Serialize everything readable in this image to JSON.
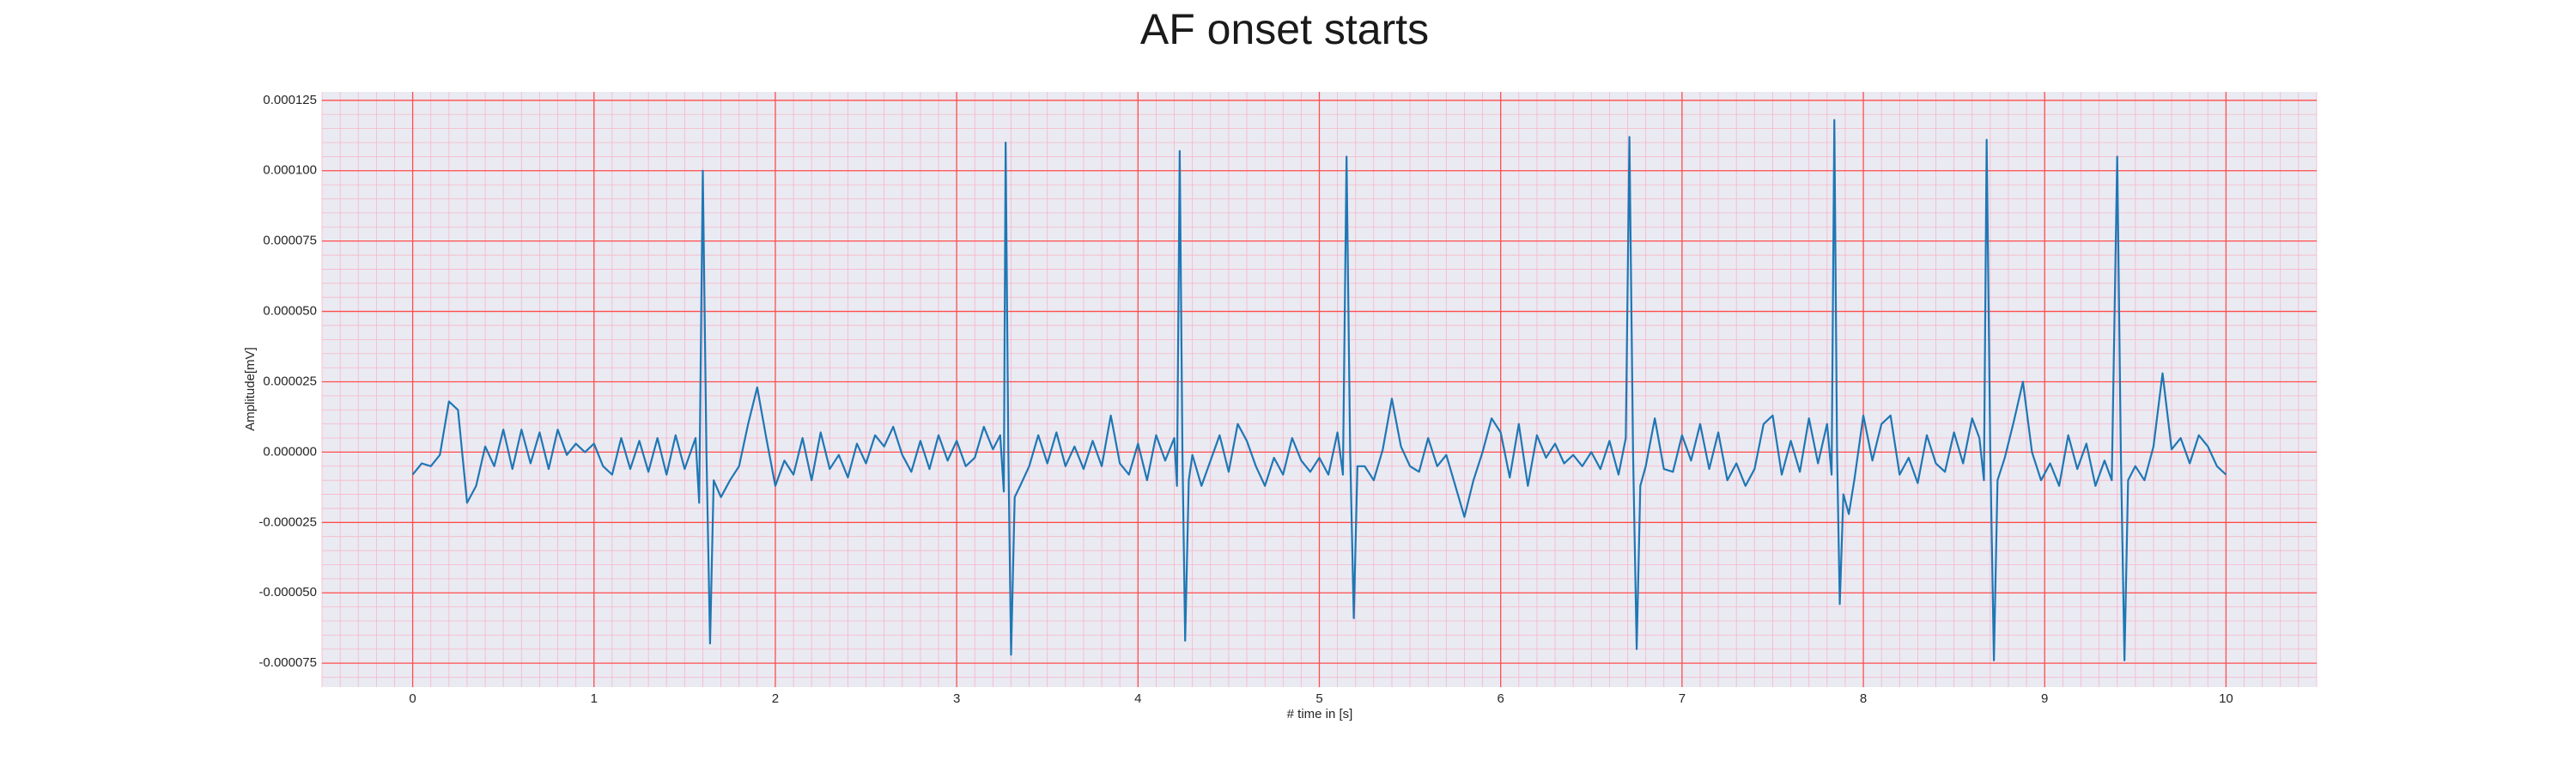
{
  "chart_data": {
    "type": "line",
    "title": "AF onset starts",
    "xlabel": "# time in [s]",
    "ylabel": "Amplitude[mV]",
    "xlim": [
      -0.5,
      10.5
    ],
    "ylim": [
      -8.35e-05,
      0.000128
    ],
    "xticks": [
      0,
      1,
      2,
      3,
      4,
      5,
      6,
      7,
      8,
      9,
      10
    ],
    "yticks": [
      {
        "value": -7.5e-05,
        "label": "-0.000075"
      },
      {
        "value": -5e-05,
        "label": "-0.000050"
      },
      {
        "value": -2.5e-05,
        "label": "-0.000025"
      },
      {
        "value": 0,
        "label": "0.000000"
      },
      {
        "value": 2.5e-05,
        "label": "0.000025"
      },
      {
        "value": 5e-05,
        "label": "0.000050"
      },
      {
        "value": 7.5e-05,
        "label": "0.000075"
      },
      {
        "value": 0.0001,
        "label": "0.000100"
      },
      {
        "value": 0.000125,
        "label": "0.000125"
      }
    ],
    "grid": true,
    "minor_grid": true,
    "background": "#eaeaf2",
    "grid_color": "#ff4d4d",
    "minor_grid_color": "#f7b6c8",
    "series": [
      {
        "color": "#1f77b4",
        "x": [
          0,
          0.05,
          0.1,
          0.15,
          0.2,
          0.25,
          0.3,
          0.35,
          0.4,
          0.45,
          0.5,
          0.55,
          0.6,
          0.65,
          0.7,
          0.75,
          0.8,
          0.85,
          0.9,
          0.95,
          1.0,
          1.05,
          1.1,
          1.15,
          1.2,
          1.25,
          1.3,
          1.35,
          1.4,
          1.45,
          1.5,
          1.56,
          1.58,
          1.6,
          1.62,
          1.64,
          1.66,
          1.7,
          1.75,
          1.8,
          1.85,
          1.9,
          1.95,
          2.0,
          2.05,
          2.1,
          2.15,
          2.2,
          2.25,
          2.3,
          2.35,
          2.4,
          2.45,
          2.5,
          2.55,
          2.6,
          2.65,
          2.7,
          2.75,
          2.8,
          2.85,
          2.9,
          2.95,
          3.0,
          3.05,
          3.1,
          3.15,
          3.2,
          3.24,
          3.26,
          3.27,
          3.285,
          3.3,
          3.32,
          3.35,
          3.4,
          3.45,
          3.5,
          3.55,
          3.6,
          3.65,
          3.7,
          3.75,
          3.8,
          3.85,
          3.9,
          3.95,
          4.0,
          4.05,
          4.1,
          4.15,
          4.2,
          4.215,
          4.23,
          4.245,
          4.26,
          4.28,
          4.3,
          4.35,
          4.4,
          4.45,
          4.5,
          4.55,
          4.6,
          4.65,
          4.7,
          4.75,
          4.8,
          4.85,
          4.9,
          4.95,
          5.0,
          5.05,
          5.1,
          5.13,
          5.15,
          5.17,
          5.19,
          5.21,
          5.25,
          5.3,
          5.35,
          5.4,
          5.45,
          5.5,
          5.55,
          5.6,
          5.65,
          5.7,
          5.75,
          5.8,
          5.85,
          5.9,
          5.95,
          6.0,
          6.05,
          6.1,
          6.15,
          6.2,
          6.25,
          6.3,
          6.35,
          6.4,
          6.45,
          6.5,
          6.55,
          6.6,
          6.65,
          6.69,
          6.71,
          6.73,
          6.75,
          6.77,
          6.8,
          6.85,
          6.9,
          6.95,
          7.0,
          7.05,
          7.1,
          7.15,
          7.2,
          7.25,
          7.3,
          7.35,
          7.4,
          7.45,
          7.5,
          7.55,
          7.6,
          7.65,
          7.7,
          7.75,
          7.8,
          7.825,
          7.84,
          7.855,
          7.87,
          7.89,
          7.92,
          7.95,
          8.0,
          8.05,
          8.1,
          8.15,
          8.2,
          8.25,
          8.3,
          8.35,
          8.4,
          8.45,
          8.5,
          8.55,
          8.6,
          8.64,
          8.665,
          8.68,
          8.7,
          8.72,
          8.74,
          8.78,
          8.83,
          8.88,
          8.93,
          8.98,
          9.03,
          9.08,
          9.13,
          9.18,
          9.23,
          9.28,
          9.33,
          9.37,
          9.4,
          9.42,
          9.44,
          9.46,
          9.5,
          9.55,
          9.6,
          9.65,
          9.7,
          9.75,
          9.8,
          9.85,
          9.9,
          9.95,
          10.0
        ],
        "values": [
          -8e-06,
          -4e-06,
          -5e-06,
          -1e-06,
          1.8e-05,
          1.5e-05,
          -1.8e-05,
          -1.2e-05,
          2e-06,
          -5e-06,
          8e-06,
          -6e-06,
          8e-06,
          -4e-06,
          7e-06,
          -6e-06,
          8e-06,
          -1e-06,
          3e-06,
          0,
          3e-06,
          -5e-06,
          -8e-06,
          5e-06,
          -6e-06,
          4e-06,
          -7e-06,
          5e-06,
          -8e-06,
          6e-06,
          -6e-06,
          5e-06,
          -1.8e-05,
          0.0001,
          0,
          -6.8e-05,
          -1e-05,
          -1.6e-05,
          -1e-05,
          -5e-06,
          1e-05,
          2.3e-05,
          5e-06,
          -1.2e-05,
          -3e-06,
          -8e-06,
          5e-06,
          -1e-05,
          7e-06,
          -6e-06,
          -1e-06,
          -9e-06,
          3e-06,
          -4e-06,
          6e-06,
          2e-06,
          9e-06,
          -1e-06,
          -7e-06,
          4e-06,
          -6e-06,
          6e-06,
          -3e-06,
          4e-06,
          -5e-06,
          -2e-06,
          9e-06,
          1e-06,
          6e-06,
          -1.4e-05,
          0.00011,
          0,
          -7.2e-05,
          -1.6e-05,
          -1.2e-05,
          -5e-06,
          6e-06,
          -4e-06,
          7e-06,
          -5e-06,
          2e-06,
          -6e-06,
          4e-06,
          -5e-06,
          1.3e-05,
          -4e-06,
          -8e-06,
          3e-06,
          -1e-05,
          6e-06,
          -3e-06,
          5e-06,
          -1.2e-05,
          0.000107,
          0,
          -6.7e-05,
          -1e-05,
          -1e-06,
          -1.2e-05,
          -3e-06,
          6e-06,
          -7e-06,
          1e-05,
          4e-06,
          -5e-06,
          -1.2e-05,
          -2e-06,
          -8e-06,
          5e-06,
          -3e-06,
          -7e-06,
          -2e-06,
          -8e-06,
          7e-06,
          -8e-06,
          0.000105,
          0,
          -5.9e-05,
          -5e-06,
          -5e-06,
          -1e-05,
          1e-06,
          1.9e-05,
          2e-06,
          -5e-06,
          -7e-06,
          5e-06,
          -5e-06,
          -1e-06,
          -1.2e-05,
          -2.3e-05,
          -1e-05,
          0,
          1.2e-05,
          7e-06,
          -9e-06,
          1e-05,
          -1.2e-05,
          6e-06,
          -2e-06,
          3e-06,
          -4e-06,
          -1e-06,
          -5e-06,
          0,
          -6e-06,
          4e-06,
          -8e-06,
          5e-06,
          0.000112,
          0,
          -7e-05,
          -1.2e-05,
          -5e-06,
          1.2e-05,
          -6e-06,
          -7e-06,
          6e-06,
          -3e-06,
          1e-05,
          -6e-06,
          7e-06,
          -1e-05,
          -4e-06,
          -1.2e-05,
          -6e-06,
          1e-05,
          1.3e-05,
          -8e-06,
          4e-06,
          -7e-06,
          1.2e-05,
          -4e-06,
          1e-05,
          -8e-06,
          0.000118,
          0,
          -5.4e-05,
          -1.5e-05,
          -2.2e-05,
          -1e-05,
          1.3e-05,
          -3e-06,
          1e-05,
          1.3e-05,
          -8e-06,
          -2e-06,
          -1.1e-05,
          6e-06,
          -4e-06,
          -7e-06,
          7e-06,
          -4e-06,
          1.2e-05,
          5e-06,
          -1e-05,
          0.000111,
          0,
          -7.4e-05,
          -1e-05,
          -2e-06,
          1.1e-05,
          2.5e-05,
          0,
          -1e-05,
          -4e-06,
          -1.2e-05,
          6e-06,
          -6e-06,
          3e-06,
          -1.2e-05,
          -3e-06,
          -1e-05,
          0.000105,
          0,
          -7.4e-05,
          -1e-05,
          -5e-06,
          -1e-05,
          2e-06,
          2.8e-05,
          1e-06,
          5e-06,
          -4e-06,
          6e-06,
          2e-06,
          -5e-06,
          -8e-06
        ]
      }
    ]
  }
}
